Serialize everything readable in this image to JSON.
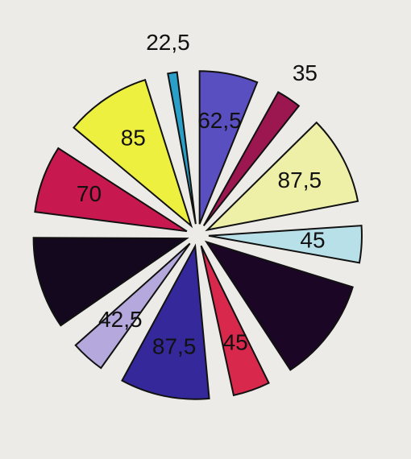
{
  "chart_data": {
    "type": "pie",
    "values": [
      22.5,
      62.5,
      35,
      87.5,
      45,
      100,
      45,
      87.5,
      42.5,
      90,
      70,
      85
    ],
    "value_labels": [
      "22,5",
      "62,5",
      "35",
      "87,5",
      "45",
      null,
      "45",
      "87,5",
      "42,5",
      null,
      "70",
      "85"
    ],
    "colors": [
      "#2aa0c8",
      "#5a4fc0",
      "#9c1650",
      "#eef0a8",
      "#b8e0e8",
      "#1c0626",
      "#d8284c",
      "#34289a",
      "#b4a8dc",
      "#14081e",
      "#c81850",
      "#eef040"
    ]
  }
}
